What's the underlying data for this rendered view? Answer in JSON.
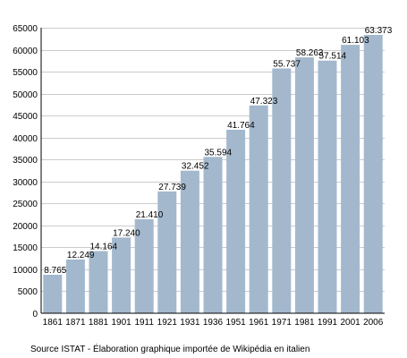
{
  "chart_data": {
    "type": "bar",
    "categories": [
      "1861",
      "1871",
      "1881",
      "1901",
      "1911",
      "1921",
      "1931",
      "1936",
      "1951",
      "1961",
      "1971",
      "1981",
      "1991",
      "2001",
      "2006"
    ],
    "series": [
      {
        "values": [
          8765,
          12249,
          14164,
          17240,
          21410,
          27739,
          32452,
          35594,
          41764,
          47323,
          55737,
          58263,
          57514,
          61103,
          63373
        ]
      }
    ],
    "data_labels": [
      "8.765",
      "12.249",
      "14.164",
      "17.240",
      "21.410",
      "27.739",
      "32.452",
      "35.594",
      "41.764",
      "47.323",
      "55.737",
      "58.263",
      "57.514",
      "61.103",
      "63.373"
    ],
    "y_ticks": [
      0,
      5000,
      10000,
      15000,
      20000,
      25000,
      30000,
      35000,
      40000,
      45000,
      50000,
      55000,
      60000,
      65000
    ],
    "ylim": [
      0,
      65000
    ],
    "grid": true,
    "legend": "none",
    "colors": {
      "bar": "#a3b8cd",
      "grid": "#cccccc",
      "axis": "#000000"
    }
  },
  "source": "Source ISTAT - Élaboration graphique importée de Wikipédia en italien"
}
